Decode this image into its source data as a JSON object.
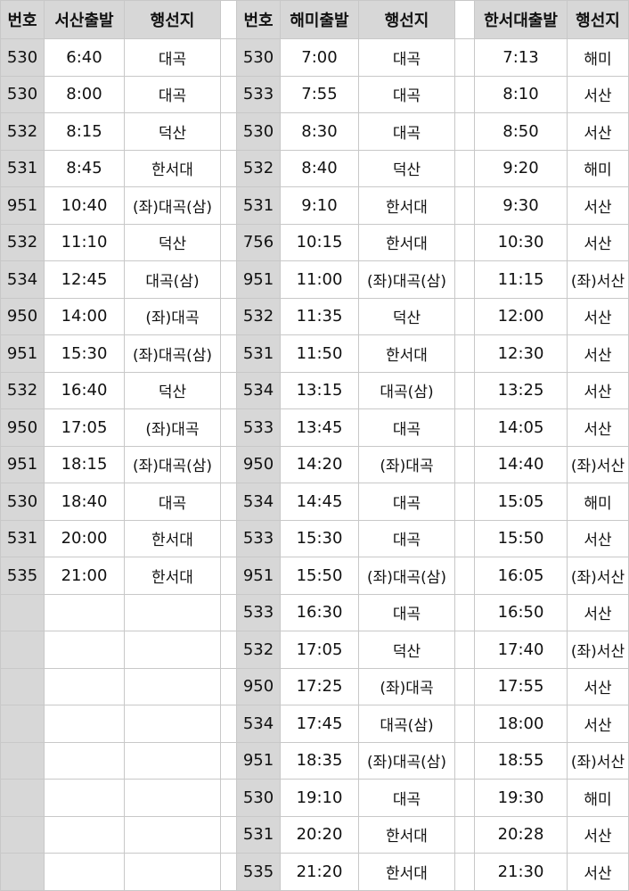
{
  "headers": {
    "left_num": "번호",
    "left_time": "서산출발",
    "left_dest": "행선지",
    "mid_num": "번호",
    "mid_time": "해미출발",
    "mid_dest": "행선지",
    "right_time": "한서대출발",
    "right_dest": "행선지"
  },
  "rows": [
    {
      "l": [
        "530",
        "6:40",
        "대곡"
      ],
      "m": [
        "530",
        "7:00",
        "대곡"
      ],
      "r": [
        "7:13",
        "해미"
      ]
    },
    {
      "l": [
        "530",
        "8:00",
        "대곡"
      ],
      "m": [
        "533",
        "7:55",
        "대곡"
      ],
      "r": [
        "8:10",
        "서산"
      ]
    },
    {
      "l": [
        "532",
        "8:15",
        "덕산"
      ],
      "m": [
        "530",
        "8:30",
        "대곡"
      ],
      "r": [
        "8:50",
        "서산"
      ]
    },
    {
      "l": [
        "531",
        "8:45",
        "한서대"
      ],
      "m": [
        "532",
        "8:40",
        "덕산"
      ],
      "r": [
        "9:20",
        "해미"
      ]
    },
    {
      "l": [
        "951",
        "10:40",
        "(좌)대곡(삼)"
      ],
      "m": [
        "531",
        "9:10",
        "한서대"
      ],
      "r": [
        "9:30",
        "서산"
      ]
    },
    {
      "l": [
        "532",
        "11:10",
        "덕산"
      ],
      "m": [
        "756",
        "10:15",
        "한서대"
      ],
      "r": [
        "10:30",
        "서산"
      ]
    },
    {
      "l": [
        "534",
        "12:45",
        "대곡(삼)"
      ],
      "m": [
        "951",
        "11:00",
        "(좌)대곡(삼)"
      ],
      "r": [
        "11:15",
        "(좌)서산"
      ]
    },
    {
      "l": [
        "950",
        "14:00",
        "(좌)대곡"
      ],
      "m": [
        "532",
        "11:35",
        "덕산"
      ],
      "r": [
        "12:00",
        "서산"
      ]
    },
    {
      "l": [
        "951",
        "15:30",
        "(좌)대곡(삼)"
      ],
      "m": [
        "531",
        "11:50",
        "한서대"
      ],
      "r": [
        "12:30",
        "서산"
      ]
    },
    {
      "l": [
        "532",
        "16:40",
        "덕산"
      ],
      "m": [
        "534",
        "13:15",
        "대곡(삼)"
      ],
      "r": [
        "13:25",
        "서산"
      ]
    },
    {
      "l": [
        "950",
        "17:05",
        "(좌)대곡"
      ],
      "m": [
        "533",
        "13:45",
        "대곡"
      ],
      "r": [
        "14:05",
        "서산"
      ]
    },
    {
      "l": [
        "951",
        "18:15",
        "(좌)대곡(삼)"
      ],
      "m": [
        "950",
        "14:20",
        "(좌)대곡"
      ],
      "r": [
        "14:40",
        "(좌)서산"
      ]
    },
    {
      "l": [
        "530",
        "18:40",
        "대곡"
      ],
      "m": [
        "534",
        "14:45",
        "대곡"
      ],
      "r": [
        "15:05",
        "해미"
      ]
    },
    {
      "l": [
        "531",
        "20:00",
        "한서대"
      ],
      "m": [
        "533",
        "15:30",
        "대곡"
      ],
      "r": [
        "15:50",
        "서산"
      ]
    },
    {
      "l": [
        "535",
        "21:00",
        "한서대"
      ],
      "m": [
        "951",
        "15:50",
        "(좌)대곡(삼)"
      ],
      "r": [
        "16:05",
        "(좌)서산"
      ]
    },
    {
      "l": [
        "",
        "",
        ""
      ],
      "m": [
        "533",
        "16:30",
        "대곡"
      ],
      "r": [
        "16:50",
        "서산"
      ]
    },
    {
      "l": [
        "",
        "",
        ""
      ],
      "m": [
        "532",
        "17:05",
        "덕산"
      ],
      "r": [
        "17:40",
        "(좌)서산"
      ]
    },
    {
      "l": [
        "",
        "",
        ""
      ],
      "m": [
        "950",
        "17:25",
        "(좌)대곡"
      ],
      "r": [
        "17:55",
        "서산"
      ]
    },
    {
      "l": [
        "",
        "",
        ""
      ],
      "m": [
        "534",
        "17:45",
        "대곡(삼)"
      ],
      "r": [
        "18:00",
        "서산"
      ]
    },
    {
      "l": [
        "",
        "",
        ""
      ],
      "m": [
        "951",
        "18:35",
        "(좌)대곡(삼)"
      ],
      "r": [
        "18:55",
        "(좌)서산"
      ]
    },
    {
      "l": [
        "",
        "",
        ""
      ],
      "m": [
        "530",
        "19:10",
        "대곡"
      ],
      "r": [
        "19:30",
        "해미"
      ]
    },
    {
      "l": [
        "",
        "",
        ""
      ],
      "m": [
        "531",
        "20:20",
        "한서대"
      ],
      "r": [
        "20:28",
        "서산"
      ]
    },
    {
      "l": [
        "",
        "",
        ""
      ],
      "m": [
        "535",
        "21:20",
        "한서대"
      ],
      "r": [
        "21:30",
        "서산"
      ]
    }
  ]
}
